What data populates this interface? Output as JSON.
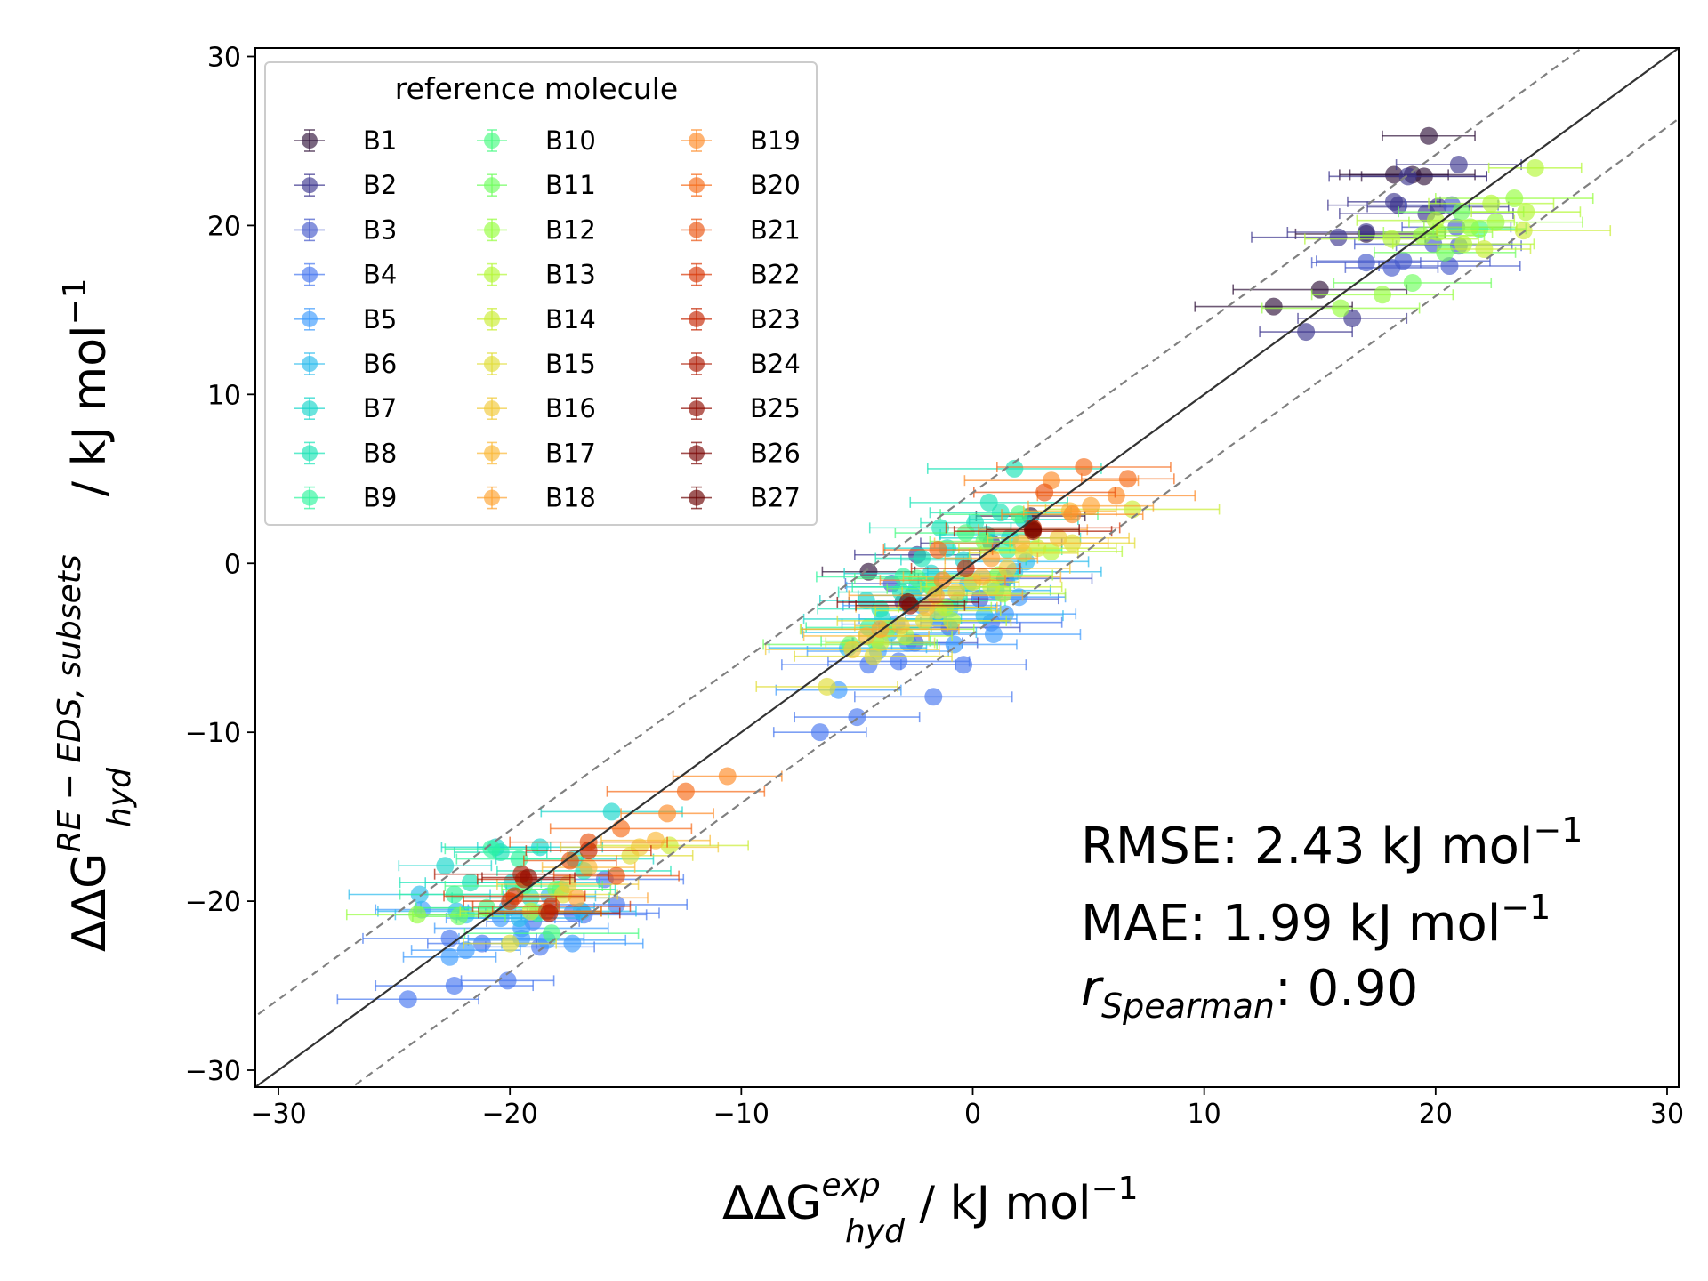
{
  "chart_data": {
    "type": "scatter",
    "title": "",
    "xlabel": {
      "base": "ΔΔG",
      "sub": "hyd",
      "sup": "exp",
      "unit": " / kJ mol",
      "unit_sup": "−1"
    },
    "ylabel": {
      "base": "ΔΔG",
      "sub": "hyd",
      "sup": "RE − EDS, subsets",
      "unit": " / kJ mol",
      "unit_sup": "−1"
    },
    "xlim": [
      -31,
      30.5
    ],
    "ylim": [
      -31,
      30.5
    ],
    "ticks": [
      -30,
      -20,
      -10,
      0,
      10,
      20,
      30
    ],
    "tick_labels": [
      "−30",
      "−20",
      "−10",
      "0",
      "10",
      "20",
      "30"
    ],
    "reference_lines": {
      "identity": "y = x",
      "band_kj_mol": 4.184
    },
    "legend": {
      "title": "reference molecule",
      "position": "upper-left",
      "columns": 3,
      "entries": [
        "B1",
        "B2",
        "B3",
        "B4",
        "B5",
        "B6",
        "B7",
        "B8",
        "B9",
        "B10",
        "B11",
        "B12",
        "B13",
        "B14",
        "B15",
        "B16",
        "B17",
        "B18",
        "B19",
        "B20",
        "B21",
        "B22",
        "B23",
        "B24",
        "B25",
        "B26",
        "B27"
      ],
      "colors": [
        "#30123b",
        "#3e378f",
        "#4559cb",
        "#4777ef",
        "#3e9bfe",
        "#29bbec",
        "#18d6cb",
        "#1ae4b6",
        "#2ef59c",
        "#46fb80",
        "#6ffe5e",
        "#95fe3d",
        "#b4f836",
        "#cbec34",
        "#e1dd37",
        "#f1ca3a",
        "#fbb938",
        "#fea331",
        "#fe8a27",
        "#f66b19",
        "#e95310",
        "#d93806",
        "#c52603",
        "#ad1802",
        "#900c01",
        "#7a0403",
        "#6a0000"
      ]
    },
    "stats": {
      "rmse_label": "RMSE: ",
      "rmse": "2.43",
      "rmse_unit": " kJ mol",
      "unit_sup": "−1",
      "mae_label": "MAE: ",
      "mae": "1.99",
      "mae_unit": " kJ mol",
      "r_symbol": "r",
      "r_sub": "Spearman",
      "r_sep": ": ",
      "r_value": "0.90"
    },
    "series": [
      {
        "name": "B1",
        "color": "#30123b",
        "x": [
          19.7,
          18.2,
          19.5,
          17.0,
          13.0,
          15.0,
          -4.5,
          2.5,
          19.0
        ],
        "y": [
          25.3,
          23.0,
          22.9,
          19.5,
          15.2,
          16.2,
          -0.5,
          2.8,
          23.0
        ]
      },
      {
        "name": "B2",
        "color": "#3e378f",
        "x": [
          18.4,
          17.0,
          15.8,
          14.4,
          16.4,
          21.0,
          20.1,
          18.8,
          19.6,
          18.2,
          -3.0,
          -2.4,
          0.8
        ],
        "y": [
          21.2,
          19.6,
          19.3,
          13.7,
          14.5,
          23.6,
          21.1,
          22.9,
          20.7,
          21.4,
          -2.3,
          0.5,
          1.2
        ]
      },
      {
        "name": "B3",
        "color": "#4559cb",
        "x": [
          20.7,
          20.9,
          21.0,
          20.6,
          19.9,
          18.6,
          18.1,
          17.0,
          -2.5,
          -1.0,
          0.3,
          1.4,
          -3.5
        ],
        "y": [
          21.2,
          19.9,
          18.8,
          17.6,
          18.9,
          17.9,
          17.5,
          17.8,
          -4.7,
          -3.8,
          -2.1,
          -0.9,
          -1.2
        ]
      },
      {
        "name": "B4",
        "color": "#4777ef",
        "x": [
          -24.4,
          -22.4,
          -22.6,
          -20.1,
          -18.7,
          -16.8,
          -15.4,
          -15.9,
          -17.3,
          -19.0,
          -21.2,
          -5.0,
          -3.2,
          -1.7,
          -4.5,
          -6.6,
          -2.8,
          -0.4,
          0.8
        ],
        "y": [
          -25.8,
          -25.0,
          -22.2,
          -24.7,
          -22.7,
          -20.8,
          -20.2,
          -18.7,
          -20.7,
          -21.2,
          -22.5,
          -9.1,
          -5.8,
          -7.9,
          -6.0,
          -10.0,
          -4.7,
          -6.0,
          -3.5
        ]
      },
      {
        "name": "B5",
        "color": "#3e9bfe",
        "x": [
          -23.8,
          -21.9,
          -19.5,
          -17.3,
          -18.4,
          -19.5,
          -22.6,
          -20.4,
          -5.8,
          -4.1,
          -1.5,
          0.9,
          2.0,
          -3.3,
          -0.8,
          1.4,
          -2.2
        ],
        "y": [
          -20.5,
          -22.9,
          -22.2,
          -22.5,
          -22.3,
          -21.6,
          -23.3,
          -21.0,
          -7.5,
          -5.2,
          -3.3,
          -4.2,
          -2.0,
          -3.6,
          -4.8,
          -3.0,
          -2.5
        ]
      },
      {
        "name": "B6",
        "color": "#29bbec",
        "x": [
          -23.9,
          -22.3,
          -20.1,
          -18.3,
          -16.9,
          -19.6,
          -21.9,
          -5.4,
          -3.6,
          -1.0,
          1.0,
          2.3,
          -2.4,
          0.5,
          1.8,
          -0.2
        ],
        "y": [
          -19.6,
          -20.6,
          -20.4,
          -19.7,
          -20.6,
          -21.0,
          -20.8,
          -5.0,
          -4.1,
          -2.7,
          -1.6,
          0.1,
          -1.4,
          -3.1,
          -0.5,
          -1.2
        ]
      },
      {
        "name": "B7",
        "color": "#18d6cb",
        "x": [
          -22.8,
          -20.6,
          -18.7,
          -15.6,
          -17.2,
          -19.9,
          -4.6,
          -2.6,
          -0.4,
          1.6,
          -3.9,
          -1.8,
          0.6,
          2.2,
          -1.1
        ],
        "y": [
          -17.9,
          -16.8,
          -16.8,
          -14.7,
          -17.5,
          -18.9,
          -2.2,
          -1.9,
          0.2,
          1.5,
          -3.3,
          -0.6,
          1.7,
          2.6,
          0.9
        ]
      },
      {
        "name": "B8",
        "color": "#1ae4b6",
        "x": [
          -21.7,
          -19.1,
          -16.8,
          -20.4,
          -17.8,
          -3.1,
          -1.4,
          0.7,
          1.8,
          -2.2,
          0.1,
          -4.0,
          1.2
        ],
        "y": [
          -18.9,
          -19.8,
          -18.2,
          -17.1,
          -19.3,
          -1.7,
          2.1,
          3.6,
          5.6,
          0.3,
          2.4,
          -2.7,
          3.0
        ]
      },
      {
        "name": "B9",
        "color": "#2ef59c",
        "x": [
          -20.8,
          -22.4,
          -19.6,
          -18.8,
          -1.8,
          -3.0,
          -0.6,
          1.5,
          -4.5
        ],
        "y": [
          -16.9,
          -19.6,
          -17.5,
          -20.7,
          -1.4,
          -0.8,
          -2.2,
          0.8,
          -3.8
        ]
      },
      {
        "name": "B10",
        "color": "#46fb80",
        "x": [
          -21.0,
          -19.4,
          -18.2,
          21.9,
          -4.2,
          -2.4,
          -0.3,
          2.0
        ],
        "y": [
          -20.4,
          -19.1,
          -21.9,
          19.8,
          -4.6,
          -0.9,
          1.8,
          2.9
        ]
      },
      {
        "name": "B11",
        "color": "#6ffe5e",
        "x": [
          -22.2,
          -18.0,
          21.1,
          20.4,
          19.0,
          -5.3,
          -1.7,
          0.5
        ],
        "y": [
          -20.9,
          -19.3,
          20.8,
          18.4,
          16.6,
          -4.8,
          -1.5,
          1.3
        ]
      },
      {
        "name": "B12",
        "color": "#95fe3d",
        "x": [
          -24.0,
          23.4,
          22.6,
          21.5,
          20.1,
          19.4,
          17.7,
          15.9,
          -3.7,
          -1.2,
          1.1
        ],
        "y": [
          -20.8,
          21.6,
          20.2,
          19.9,
          19.6,
          19.4,
          15.9,
          15.1,
          -3.9,
          -2.6,
          -0.7
        ]
      },
      {
        "name": "B13",
        "color": "#b4f836",
        "x": [
          24.3,
          23.9,
          22.4,
          21.2,
          20.0,
          18.1,
          -2.9,
          -0.9,
          1.3,
          3.4
        ],
        "y": [
          23.4,
          20.8,
          21.3,
          18.9,
          20.3,
          19.2,
          -4.3,
          -3.4,
          -1.8,
          0.7
        ]
      },
      {
        "name": "B14",
        "color": "#cbec34",
        "x": [
          -19.1,
          -13.1,
          23.8,
          22.1,
          -4.0,
          -1.5,
          0.8,
          2.8,
          6.9
        ],
        "y": [
          -20.6,
          -16.7,
          19.7,
          18.6,
          -4.7,
          -2.8,
          -1.4,
          0.9,
          3.2
        ]
      },
      {
        "name": "B15",
        "color": "#e1dd37",
        "x": [
          -20.0,
          -17.7,
          -14.8,
          -6.3,
          -4.3,
          -2.1,
          0.0,
          2.2,
          4.3
        ],
        "y": [
          -22.5,
          -19.6,
          -17.3,
          -7.3,
          -5.5,
          -3.4,
          -1.1,
          0.6,
          1.2
        ]
      },
      {
        "name": "B16",
        "color": "#f1ca3a",
        "x": [
          -17.5,
          -14.4,
          -5.2,
          -3.1,
          -0.7,
          1.5,
          3.7
        ],
        "y": [
          -19.0,
          -16.8,
          -5.1,
          -3.7,
          -1.7,
          -0.3,
          1.5
        ]
      },
      {
        "name": "B17",
        "color": "#fbb938",
        "x": [
          -16.6,
          -13.7,
          -4.6,
          -2.0,
          0.4,
          2.1,
          4.2
        ],
        "y": [
          -18.0,
          -16.4,
          -4.3,
          -2.6,
          -0.8,
          1.2,
          3.1
        ]
      },
      {
        "name": "B18",
        "color": "#fea331",
        "x": [
          -17.1,
          -4.0,
          -1.6,
          0.8,
          2.6,
          5.1
        ],
        "y": [
          -19.8,
          -3.9,
          -1.9,
          0.3,
          2.0,
          3.4
        ]
      },
      {
        "name": "B19",
        "color": "#fe8a27",
        "x": [
          -13.2,
          -10.6,
          -1.3,
          4.3,
          6.2,
          3.4
        ],
        "y": [
          -14.8,
          -12.6,
          -1.0,
          2.9,
          4.0,
          4.9
        ]
      },
      {
        "name": "B20",
        "color": "#f66b19",
        "x": [
          -15.2,
          -12.4,
          4.8,
          6.7,
          -1.5
        ],
        "y": [
          -15.7,
          -13.5,
          5.7,
          5.0,
          0.8
        ]
      },
      {
        "name": "B21",
        "color": "#e95310",
        "x": [
          -17.4,
          -18.4,
          -15.4,
          3.1,
          -16.6
        ],
        "y": [
          -17.6,
          -20.6,
          -18.5,
          4.2,
          -16.5
        ]
      },
      {
        "name": "B22",
        "color": "#d93806",
        "x": [
          -19.8,
          -18.2,
          2.6,
          -20.0
        ],
        "y": [
          -19.7,
          -20.3,
          2.1,
          -20.0
        ]
      },
      {
        "name": "B23",
        "color": "#c52603",
        "x": [
          -19.4,
          -0.3,
          -16.6
        ],
        "y": [
          -18.7,
          -0.3,
          -17.0
        ]
      },
      {
        "name": "B24",
        "color": "#ad1802",
        "x": [
          -18.3,
          2.6,
          -19.5
        ],
        "y": [
          -20.7,
          1.9,
          -18.4
        ]
      },
      {
        "name": "B25",
        "color": "#900c01",
        "x": [
          -19.2,
          -2.7
        ],
        "y": [
          -18.6,
          -2.5
        ]
      },
      {
        "name": "B26",
        "color": "#7a0403",
        "x": [
          -2.8
        ],
        "y": [
          -2.3
        ]
      },
      {
        "name": "B27",
        "color": "#6a0000",
        "x": [
          2.6
        ],
        "y": [
          2.0
        ]
      }
    ]
  }
}
